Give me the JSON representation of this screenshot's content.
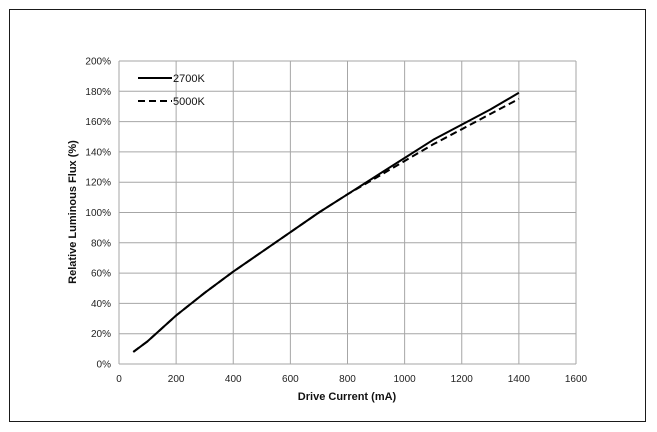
{
  "chart_data": {
    "type": "line",
    "xlabel": "Drive Current (mA)",
    "ylabel": "Relative Luminous Flux (%)",
    "xlim": [
      0,
      1600
    ],
    "ylim": [
      0,
      200
    ],
    "x_ticks": [
      "0",
      "200",
      "400",
      "600",
      "800",
      "1000",
      "1200",
      "1400",
      "1600"
    ],
    "y_ticks": [
      "0%",
      "20%",
      "40%",
      "60%",
      "80%",
      "100%",
      "120%",
      "140%",
      "160%",
      "180%",
      "200%"
    ],
    "grid": true,
    "legend_position": "top-left",
    "series": [
      {
        "name": "2700K",
        "style": "solid",
        "color": "#000000",
        "x": [
          50,
          100,
          200,
          300,
          400,
          500,
          600,
          700,
          800,
          900,
          1000,
          1100,
          1200,
          1300,
          1400
        ],
        "y": [
          8,
          15,
          32,
          47,
          61,
          74,
          87,
          100,
          112,
          124,
          136,
          148,
          158,
          168,
          179
        ]
      },
      {
        "name": "5000K",
        "style": "dashed",
        "color": "#000000",
        "x": [
          50,
          100,
          200,
          300,
          400,
          500,
          600,
          700,
          800,
          900,
          1000,
          1100,
          1200,
          1300,
          1400
        ],
        "y": [
          8,
          15,
          32,
          47,
          61,
          74,
          87,
          100,
          112,
          123,
          134,
          145,
          155,
          165,
          175
        ]
      }
    ]
  }
}
